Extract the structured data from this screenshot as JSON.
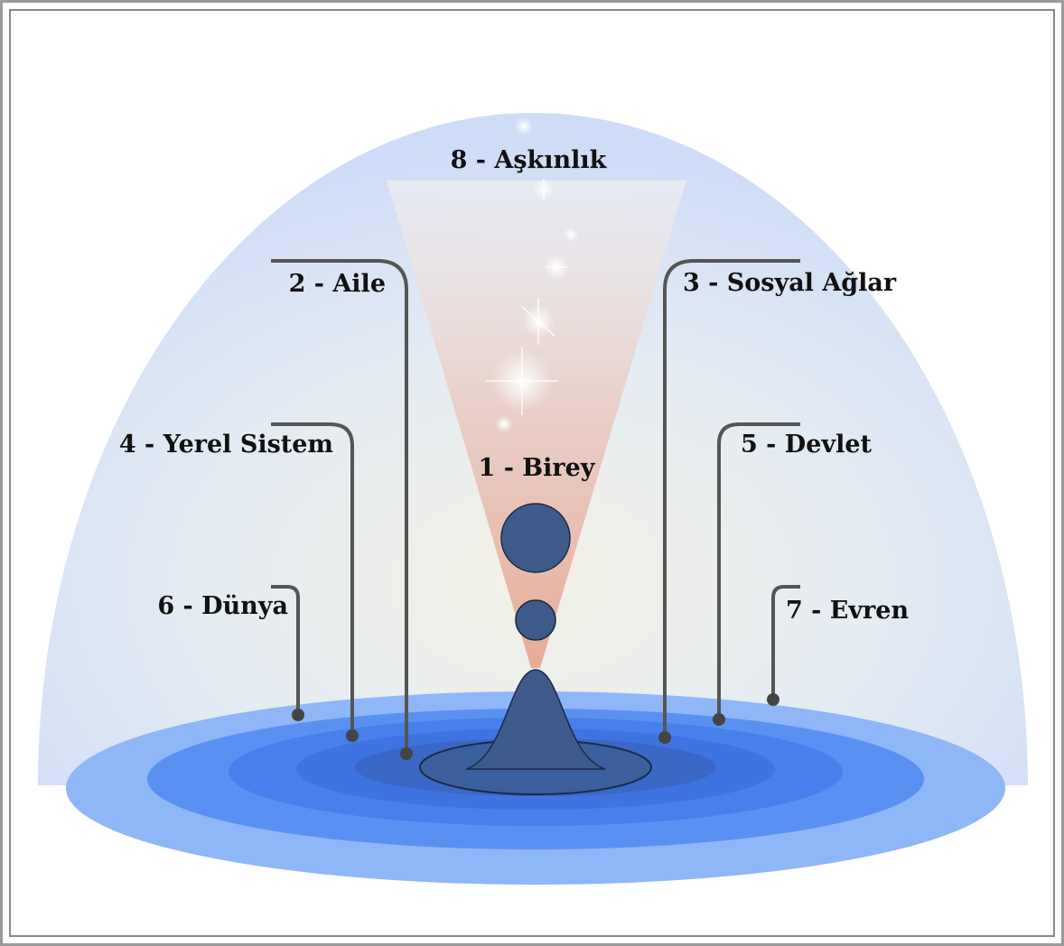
{
  "diagram": {
    "labels": {
      "l1": "1 - Birey",
      "l2": "2 - Aile",
      "l3": "3 - Sosyal Ağlar",
      "l4": "4 - Yerel Sistem",
      "l5": "5 - Devlet",
      "l6": "6 - Dünya",
      "l7": "7 - Evren",
      "l8": "8 - Aşkınlık"
    },
    "colors": {
      "dome": "#d3def7",
      "disc_outer": "#93b6f3",
      "disc_mid": "#5a8ff0",
      "disc_inner": "#3d6fd6",
      "figure": "#3e5a8a",
      "leader": "#555555",
      "cone": "#e8b8a8"
    }
  }
}
